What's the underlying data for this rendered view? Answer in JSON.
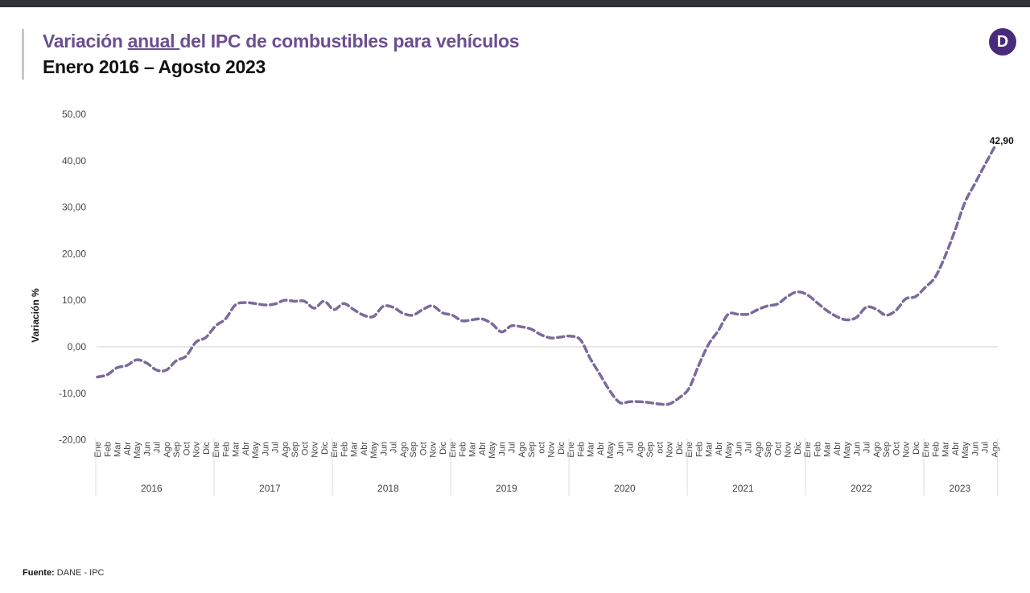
{
  "header": {
    "title_pre": "Variación ",
    "title_underlined": "anual ",
    "title_post": "del IPC de combustibles para vehículos",
    "subtitle": "Enero 2016 – Agosto 2023",
    "logo_letter": "D"
  },
  "footer": {
    "source_label": "Fuente:",
    "source_value": "DANE - IPC"
  },
  "colors": {
    "line": "#7b6a9c",
    "title": "#6b4f8f",
    "logo": "#4a2a7a",
    "zero_line": "#d9d9d9"
  },
  "chart_data": {
    "type": "line",
    "title": "Variación anual del IPC de combustibles para vehículos",
    "subtitle": "Enero 2016 – Agosto 2023",
    "xlabel": "",
    "ylabel": "Variación %",
    "ylim": [
      -20,
      50
    ],
    "yticks": [
      "50,00",
      "40,00",
      "30,00",
      "20,00",
      "10,00",
      "0,00",
      "-10,00",
      "-20,00"
    ],
    "ytick_values": [
      50,
      40,
      30,
      20,
      10,
      0,
      -10,
      -20
    ],
    "grid": false,
    "legend": null,
    "years": [
      "2016",
      "2017",
      "2018",
      "2019",
      "2020",
      "2021",
      "2022",
      "2023"
    ],
    "months": [
      "Ene",
      "Feb",
      "Mar",
      "Abr",
      "May",
      "Jun",
      "Jul",
      "Ago",
      "Sep",
      "Oct",
      "Nov",
      "Dic"
    ],
    "month_labels_by_year": {
      "2016": [
        "Ene",
        "Feb",
        "Mar",
        "Abr",
        "May",
        "Jun",
        "Jul",
        "Ago",
        "Sep",
        "Oct",
        "Nov",
        "Dic"
      ],
      "2017": [
        "Ene",
        "Feb",
        "Mar",
        "Abr",
        "May",
        "Jun",
        "Jul",
        "Ago",
        "Sep",
        "Oct",
        "Nov",
        "Dic"
      ],
      "2018": [
        "Ene",
        "Feb",
        "Mar",
        "Abr",
        "May",
        "Jun",
        "Jul",
        "Ago",
        "Sep",
        "Oct",
        "Nov",
        "Dic"
      ],
      "2019": [
        "Ene",
        "Feb",
        "Mar",
        "Abr",
        "May",
        "Jun",
        "Jul",
        "Ago",
        "Sep",
        "oct",
        "Nov",
        "Dic"
      ],
      "2020": [
        "Ene",
        "Feb",
        "Mar",
        "Abr",
        "May",
        "Jun",
        "Jul",
        "Ago",
        "Sep",
        "oct",
        "Nov",
        "Dic"
      ],
      "2021": [
        "Ene",
        "Feb",
        "Mar",
        "Abr",
        "May",
        "Jun",
        "Jul",
        "Ago",
        "Sep",
        "Oct",
        "Nov",
        "Dic"
      ],
      "2022": [
        "Ene",
        "Feb",
        "Mar",
        "Abr",
        "May",
        "Jun",
        "Jul",
        "Ago",
        "Sep",
        "Oct",
        "Nov",
        "Dic"
      ],
      "2023": [
        "Ene",
        "Feb",
        "Mar",
        "Abr",
        "May",
        "Jun",
        "Jul",
        "Ago"
      ]
    },
    "series": [
      {
        "name": "Variación anual IPC combustibles",
        "style": "dashed",
        "values": [
          -6.5,
          -6.0,
          -4.5,
          -4.0,
          -2.8,
          -3.5,
          -5.0,
          -5.0,
          -3.0,
          -2.0,
          1.0,
          2.0,
          4.5,
          6.0,
          9.0,
          9.5,
          9.3,
          9.0,
          9.2,
          10.0,
          9.8,
          9.8,
          8.3,
          9.8,
          8.0,
          9.3,
          8.0,
          6.8,
          6.5,
          8.7,
          8.5,
          7.2,
          6.8,
          8.0,
          8.8,
          7.3,
          6.8,
          5.6,
          5.8,
          6.0,
          5.0,
          3.2,
          4.5,
          4.3,
          3.8,
          2.6,
          1.9,
          2.1,
          2.3,
          1.5,
          -2.5,
          -6.0,
          -9.5,
          -12.0,
          -11.8,
          -11.8,
          -12.0,
          -12.3,
          -12.3,
          -11.0,
          -9.0,
          -4.0,
          0.5,
          3.5,
          7.0,
          7.0,
          7.0,
          8.0,
          8.8,
          9.2,
          10.8,
          11.8,
          11.2,
          9.5,
          7.8,
          6.5,
          5.8,
          6.3,
          8.5,
          8.1,
          6.8,
          7.8,
          10.3,
          10.8,
          12.8,
          15.0,
          19.5,
          25.0,
          31.0,
          35.0,
          39.0,
          42.9
        ]
      }
    ],
    "annotations": [
      {
        "label": "42,90",
        "point": "Ago 2023",
        "value": 42.9
      }
    ]
  }
}
